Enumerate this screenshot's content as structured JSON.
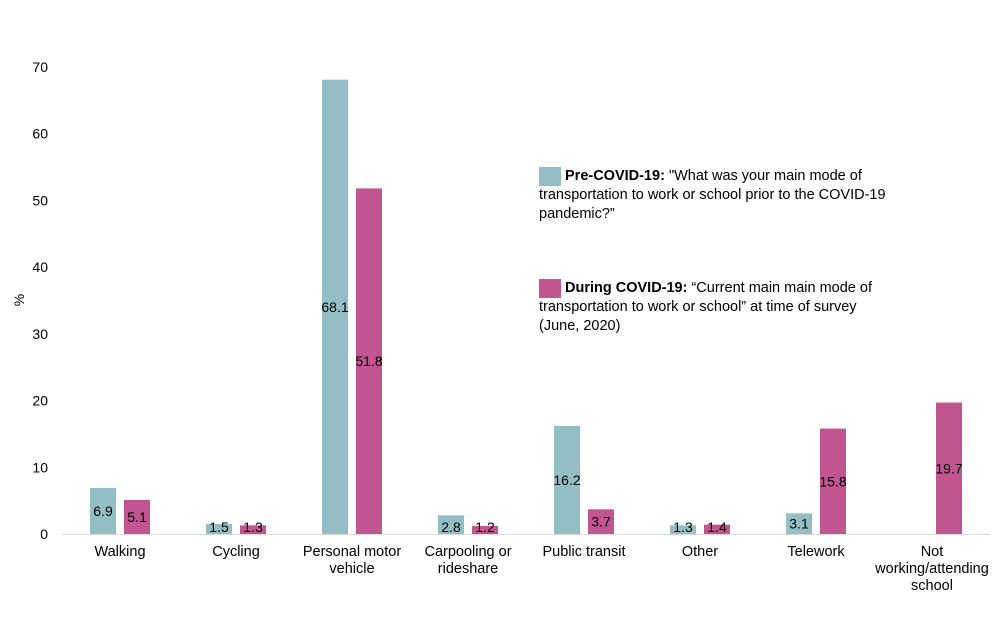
{
  "chart_data": {
    "type": "bar",
    "ylabel": "%",
    "ylim": [
      0,
      70
    ],
    "yticks": [
      0,
      10,
      20,
      30,
      40,
      50,
      60,
      70
    ],
    "categories": [
      "Walking",
      "Cycling",
      "Personal motor vehicle",
      "Carpooling or rideshare",
      "Public transit",
      "Other",
      "Telework",
      "Not working/attending school"
    ],
    "category_label_lines": [
      [
        "Walking"
      ],
      [
        "Cycling"
      ],
      [
        "Personal motor",
        "vehicle"
      ],
      [
        "Carpooling or",
        "rideshare"
      ],
      [
        "Public transit"
      ],
      [
        "Other"
      ],
      [
        "Telework"
      ],
      [
        "Not",
        "working/attending",
        "school"
      ]
    ],
    "series": [
      {
        "name": "Pre-COVID-19",
        "color": "#93bfc4",
        "values": [
          6.9,
          1.5,
          68.1,
          2.8,
          16.2,
          1.3,
          3.1,
          null
        ]
      },
      {
        "name": "During COVID-19",
        "color": "#c0558f",
        "values": [
          5.1,
          1.3,
          51.8,
          1.2,
          3.7,
          1.4,
          15.8,
          19.7
        ]
      }
    ],
    "legend": {
      "pre": {
        "bold": "Pre-COVID-19:",
        "text": " \"What was your main mode of transportation to work or school prior to the COVID-19 pandemic?”"
      },
      "during": {
        "bold": "During COVID-19:",
        "text": " “Current main main mode of transportation to work or school” at time of survey (June, 2020)"
      }
    },
    "grid": false,
    "legend_position": "right"
  }
}
